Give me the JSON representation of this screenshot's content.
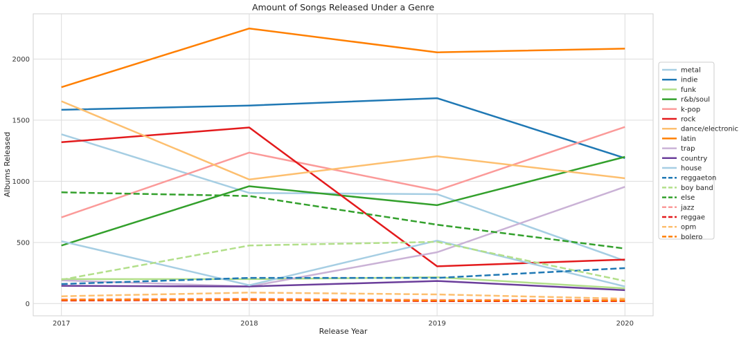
{
  "chart_data": {
    "type": "line",
    "title": "Amount of Songs Released Under a Genre",
    "xlabel": "Release Year",
    "ylabel": "Albums Released",
    "x": [
      2017,
      2018,
      2019,
      2020
    ],
    "x_tick_labels": [
      "2017",
      "2018",
      "2019",
      "2020"
    ],
    "y_ticks": [
      0,
      500,
      1000,
      1500,
      2000
    ],
    "y_tick_labels": [
      "0",
      "500",
      "1000",
      "1500",
      "2000"
    ],
    "xlim": [
      2016.85,
      2020.15
    ],
    "ylim": [
      -100,
      2370
    ],
    "grid": true,
    "legend_position": "right",
    "series": [
      {
        "name": "metal",
        "values": [
          1385,
          905,
          895,
          350
        ],
        "color": "#a6cee3",
        "dash": "solid"
      },
      {
        "name": "indie",
        "values": [
          1585,
          1620,
          1680,
          1190
        ],
        "color": "#1f78b4",
        "dash": "solid"
      },
      {
        "name": "funk",
        "values": [
          200,
          200,
          215,
          125
        ],
        "color": "#b2df8a",
        "dash": "solid"
      },
      {
        "name": "r&b/soul",
        "values": [
          475,
          960,
          805,
          1200
        ],
        "color": "#33a02c",
        "dash": "solid"
      },
      {
        "name": "k-pop",
        "values": [
          705,
          1235,
          925,
          1445
        ],
        "color": "#fb9a99",
        "dash": "solid"
      },
      {
        "name": "rock",
        "values": [
          1320,
          1440,
          305,
          360
        ],
        "color": "#e31a1c",
        "dash": "solid"
      },
      {
        "name": "dance/electronic",
        "values": [
          1655,
          1015,
          1205,
          1025
        ],
        "color": "#fdbf6f",
        "dash": "solid"
      },
      {
        "name": "latin",
        "values": [
          1770,
          2250,
          2055,
          2085
        ],
        "color": "#ff7f00",
        "dash": "solid"
      },
      {
        "name": "trap",
        "values": [
          190,
          140,
          420,
          955
        ],
        "color": "#cab2d6",
        "dash": "solid"
      },
      {
        "name": "country",
        "values": [
          145,
          140,
          185,
          110
        ],
        "color": "#6a3d9a",
        "dash": "solid"
      },
      {
        "name": "house",
        "values": [
          510,
          150,
          515,
          140
        ],
        "color": "#a6cee3",
        "dash": "solid"
      },
      {
        "name": "reggaeton",
        "values": [
          160,
          210,
          210,
          290
        ],
        "color": "#1f78b4",
        "dash": "dashed"
      },
      {
        "name": "boy band",
        "values": [
          195,
          475,
          505,
          185
        ],
        "color": "#b2df8a",
        "dash": "dashed"
      },
      {
        "name": "else",
        "values": [
          910,
          880,
          645,
          450
        ],
        "color": "#33a02c",
        "dash": "dashed"
      },
      {
        "name": "jazz",
        "values": [
          35,
          40,
          30,
          30
        ],
        "color": "#fb9a99",
        "dash": "dashed"
      },
      {
        "name": "reggae",
        "values": [
          25,
          30,
          20,
          20
        ],
        "color": "#e31a1c",
        "dash": "dashed"
      },
      {
        "name": "opm",
        "values": [
          60,
          90,
          75,
          40
        ],
        "color": "#fdbf6f",
        "dash": "dashed"
      },
      {
        "name": "bolero",
        "values": [
          30,
          35,
          25,
          25
        ],
        "color": "#ff7f00",
        "dash": "dashed"
      }
    ]
  }
}
